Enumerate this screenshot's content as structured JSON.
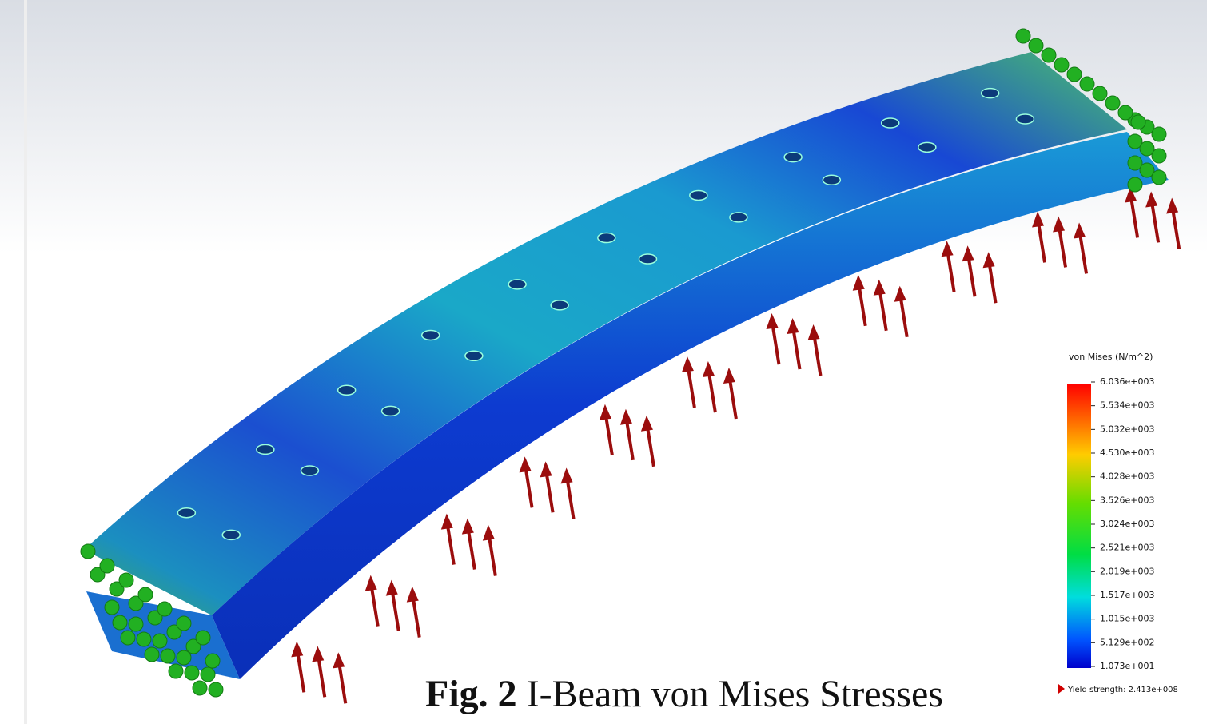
{
  "legend": {
    "title": "von Mises (N/m^2)",
    "labels": [
      "6.036e+003",
      "5.534e+003",
      "5.032e+003",
      "4.530e+003",
      "4.028e+003",
      "3.526e+003",
      "3.024e+003",
      "2.521e+003",
      "2.019e+003",
      "1.517e+003",
      "1.015e+003",
      "5.129e+002",
      "1.073e+001"
    ],
    "yield": "Yield strength: 2.413e+008"
  },
  "caption": {
    "label": "Fig. 2",
    "text": "I-Beam von Mises Stresses"
  }
}
